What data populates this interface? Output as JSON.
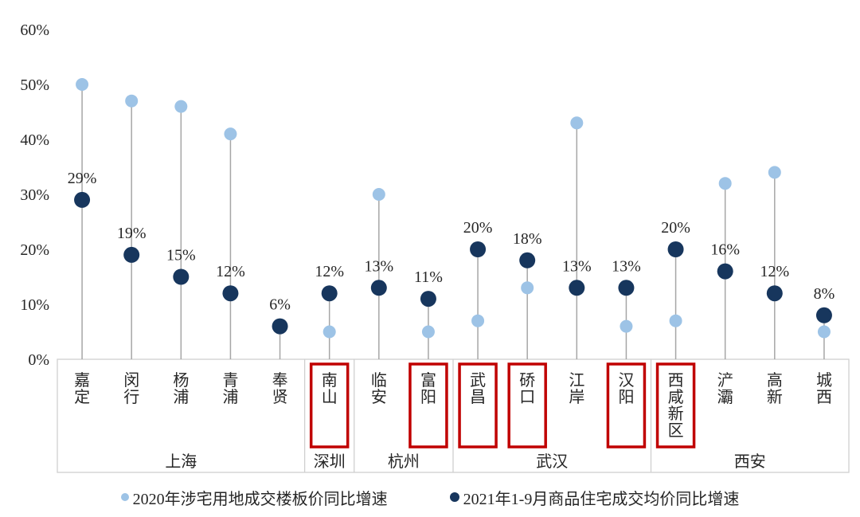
{
  "chart_data": {
    "type": "scatter",
    "subtype": "lollipop",
    "title": "",
    "xlabel": "",
    "ylabel": "",
    "ylim": [
      0,
      60
    ],
    "ytick_step": 10,
    "ytick_labels": [
      "0%",
      "10%",
      "20%",
      "30%",
      "40%",
      "50%",
      "60%"
    ],
    "grid": false,
    "legend_position": "bottom",
    "categories": [
      "嘉定",
      "闵行",
      "杨浦",
      "青浦",
      "奉贤",
      "南山",
      "临安",
      "富阳",
      "武昌",
      "硚口",
      "江岸",
      "汉阳",
      "西咸新区",
      "浐灞",
      "高新",
      "城西"
    ],
    "city_groups": [
      {
        "label": "上海",
        "count": 5
      },
      {
        "label": "深圳",
        "count": 1
      },
      {
        "label": "杭州",
        "count": 2
      },
      {
        "label": "武汉",
        "count": 4
      },
      {
        "label": "西安",
        "count": 4
      }
    ],
    "highlighted_categories": [
      "南山",
      "富阳",
      "武昌",
      "硚口",
      "汉阳",
      "西咸新区"
    ],
    "series": [
      {
        "name": "2020年涉宅用地成交楼板价同比增速",
        "color": "#9DC3E6",
        "values": [
          50,
          47,
          46,
          41,
          null,
          5,
          30,
          5,
          7,
          13,
          43,
          6,
          7,
          32,
          34,
          5
        ]
      },
      {
        "name": "2021年1-9月商品住宅成交均价同比增速",
        "color": "#17365D",
        "values": [
          29,
          19,
          15,
          12,
          6,
          12,
          13,
          11,
          20,
          18,
          13,
          13,
          20,
          16,
          12,
          8
        ],
        "data_labels": [
          "29%",
          "19%",
          "15%",
          "12%",
          "6%",
          "12%",
          "13%",
          "11%",
          "20%",
          "18%",
          "13%",
          "13%",
          "20%",
          "16%",
          "12%",
          "8%"
        ]
      }
    ],
    "colors": {
      "stem": "#A6A6A6",
      "axis_frame": "#CFCFCF",
      "highlight_box": "#C00000",
      "text": "#262626",
      "background": "#FFFFFF"
    }
  },
  "legend": {
    "items": [
      {
        "label": "2020年涉宅用地成交楼板价同比增速",
        "color": "#9DC3E6"
      },
      {
        "label": "2021年1-9月商品住宅成交均价同比增速",
        "color": "#17365D"
      }
    ]
  }
}
